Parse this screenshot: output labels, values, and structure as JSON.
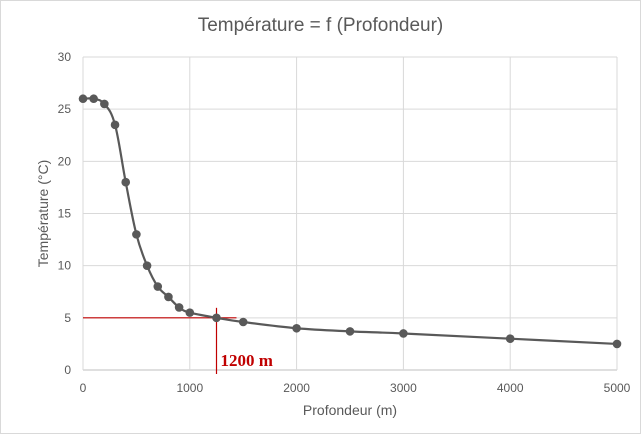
{
  "chart_data": {
    "type": "line",
    "title": "Température = f (Profondeur)",
    "xlabel": "Profondeur (m)",
    "ylabel": "Température (°C)",
    "xlim": [
      0,
      5000
    ],
    "ylim": [
      0,
      30
    ],
    "xticks": [
      0,
      1000,
      2000,
      3000,
      4000,
      5000
    ],
    "yticks": [
      0,
      5,
      10,
      15,
      20,
      25,
      30
    ],
    "grid": true,
    "series": [
      {
        "x": [
          0,
          100,
          200,
          300,
          400,
          500,
          600,
          700,
          800,
          900,
          1000,
          1250,
          1500,
          2000,
          2500,
          3000,
          4000,
          5000
        ],
        "y": [
          26,
          26,
          25.5,
          23.5,
          18,
          13,
          10,
          8,
          7,
          6,
          5.5,
          5,
          4.6,
          4,
          3.7,
          3.5,
          3,
          2.5
        ],
        "color": "#595959",
        "smooth": true,
        "markers": true
      }
    ],
    "annotation": {
      "text": "1200 m",
      "color": "#c00000",
      "x": 1250,
      "y": 5
    }
  }
}
